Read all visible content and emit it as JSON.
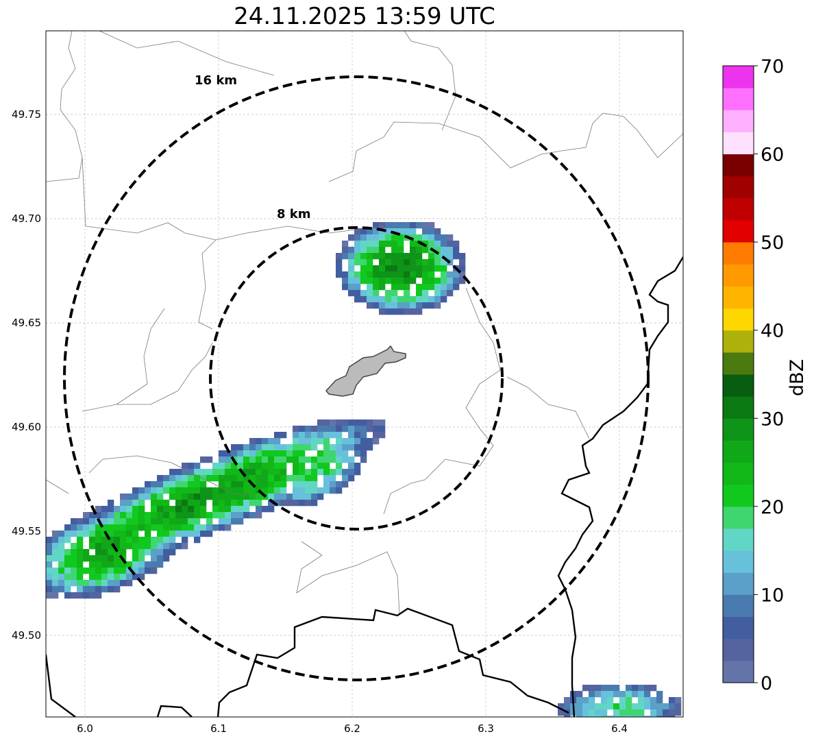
{
  "title": "24.11.2025 13:59 UTC",
  "map": {
    "x_ticks": [
      "6.0",
      "6.1",
      "6.2",
      "6.3",
      "6.4"
    ],
    "y_ticks": [
      "49.75",
      "49.70",
      "49.65",
      "49.60",
      "49.55",
      "49.50"
    ],
    "range_rings": [
      {
        "label": "16 km",
        "radius_km": 16
      },
      {
        "label": "8 km",
        "radius_km": 8
      }
    ]
  },
  "colorbar": {
    "unit": "dBZ",
    "ticks": [
      "0",
      "10",
      "20",
      "30",
      "40",
      "50",
      "60",
      "70"
    ],
    "min": 0,
    "max": 70,
    "step": 2.5,
    "colors": [
      "#6574a8",
      "#55639f",
      "#435ea0",
      "#4a7bb0",
      "#5aa0c8",
      "#67c1da",
      "#62d6c6",
      "#3fd670",
      "#11c81f",
      "#11b818",
      "#10a818",
      "#0e9418",
      "#0b7a12",
      "#075e10",
      "#4a7a10",
      "#aeb10a",
      "#ffd700",
      "#ffb400",
      "#ff9a00",
      "#ff7c00",
      "#e20000",
      "#c00000",
      "#a00000",
      "#780000",
      "#ffe0ff",
      "#ffb0ff",
      "#ff70ff",
      "#ee33ee"
    ]
  }
}
